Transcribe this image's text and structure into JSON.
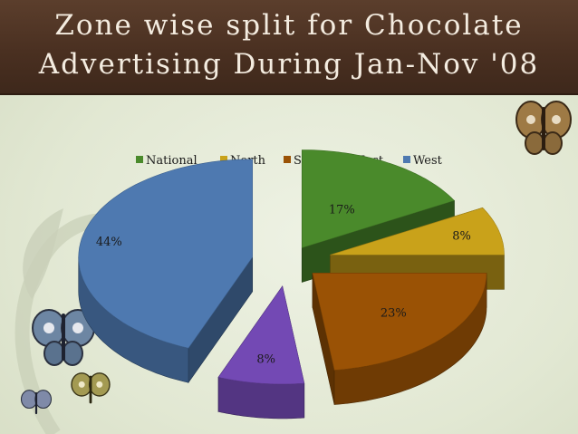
{
  "slide": {
    "title_lines": [
      "Zone wise split for Chocolate",
      "Advertising During Jan-Nov '08"
    ]
  },
  "chart_data": {
    "type": "pie",
    "style": "3d-exploded",
    "legend_position": "top",
    "categories": [
      "National",
      "North",
      "South",
      "East",
      "West"
    ],
    "values": [
      17,
      8,
      23,
      8,
      44
    ],
    "labels": [
      "17%",
      "8%",
      "23%",
      "8%",
      "44%"
    ],
    "colors": [
      "#4a8a2b",
      "#c9a21a",
      "#9a5205",
      "#7349b4",
      "#4e79b0"
    ]
  }
}
